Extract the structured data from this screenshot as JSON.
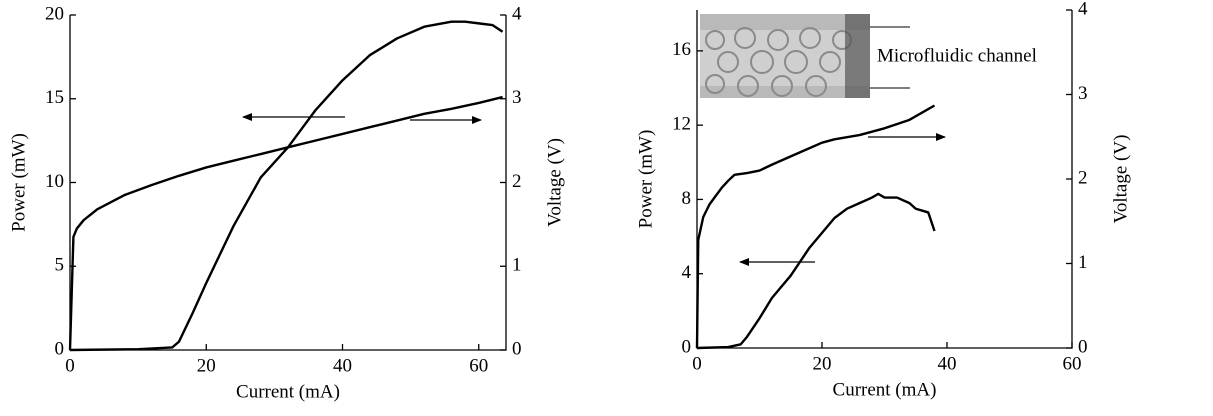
{
  "chart_data": [
    {
      "type": "line",
      "x_label": "Current (mA)",
      "y_label": "Power (mW)",
      "y2_label": "Voltage (V)",
      "xlim": [
        0,
        64
      ],
      "xticks": [
        0,
        20,
        40,
        60
      ],
      "ylim": [
        0,
        20
      ],
      "yticks": [
        0,
        5,
        10,
        15,
        20
      ],
      "y2lim": [
        0,
        4
      ],
      "y2ticks": [
        0,
        1,
        2,
        3,
        4
      ],
      "series": [
        {
          "color": "#000000",
          "x": [
            0,
            10,
            15,
            16,
            18,
            20,
            24,
            28,
            32,
            36,
            40,
            44,
            48,
            52,
            56,
            58,
            60,
            62,
            63.5
          ],
          "values": [
            0,
            0.05,
            0.15,
            0.5,
            2.2,
            4.0,
            7.4,
            10.3,
            12.1,
            14.3,
            16.1,
            17.6,
            18.6,
            19.3,
            19.6,
            19.6,
            19.5,
            19.4,
            19.0
          ]
        },
        {
          "color": "#000000",
          "axis": "y2",
          "x": [
            0,
            0.5,
            1,
            2,
            4,
            8,
            12,
            16,
            20,
            24,
            28,
            32,
            36,
            40,
            44,
            48,
            52,
            56,
            60,
            63.5
          ],
          "values": [
            0,
            1.35,
            1.45,
            1.55,
            1.68,
            1.85,
            1.97,
            2.08,
            2.18,
            2.26,
            2.34,
            2.42,
            2.5,
            2.58,
            2.66,
            2.74,
            2.82,
            2.88,
            2.95,
            3.02
          ]
        }
      ]
    },
    {
      "type": "line",
      "x_label": "Current (mA)",
      "y_label": "Power (mW)",
      "y2_label": "Voltage (V)",
      "annotation": "Microfluidic channel",
      "xlim": [
        0,
        60
      ],
      "xticks": [
        0,
        20,
        40,
        60
      ],
      "ylim": [
        0,
        18.2
      ],
      "yticks": [
        0,
        4,
        8,
        12,
        16
      ],
      "y2lim": [
        0,
        4
      ],
      "y2ticks": [
        0,
        1,
        2,
        3,
        4
      ],
      "series": [
        {
          "color": "#000000",
          "x": [
            0,
            5,
            7,
            8,
            10,
            12,
            15,
            18,
            20,
            22,
            24,
            26,
            28,
            29,
            30,
            32,
            34,
            35,
            36,
            37,
            38
          ],
          "values": [
            0,
            0.05,
            0.2,
            0.6,
            1.6,
            2.7,
            3.9,
            5.4,
            6.2,
            7.0,
            7.5,
            7.8,
            8.1,
            8.3,
            8.1,
            8.1,
            7.8,
            7.5,
            7.4,
            7.3,
            6.3
          ]
        },
        {
          "color": "#000000",
          "axis": "y2",
          "x": [
            0,
            0.2,
            1,
            2,
            3,
            4,
            5,
            6,
            8,
            10,
            12,
            16,
            20,
            22,
            26,
            30,
            34,
            38
          ],
          "values": [
            0,
            1.28,
            1.55,
            1.7,
            1.8,
            1.9,
            1.98,
            2.05,
            2.07,
            2.1,
            2.17,
            2.3,
            2.43,
            2.47,
            2.52,
            2.6,
            2.7,
            2.87
          ]
        }
      ]
    }
  ]
}
